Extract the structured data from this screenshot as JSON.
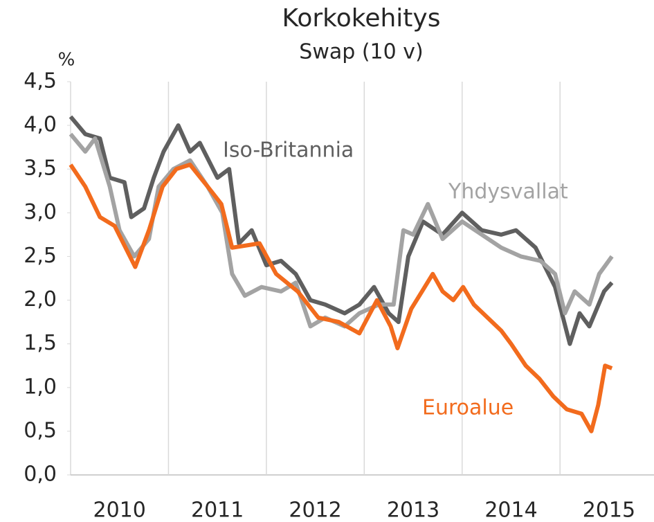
{
  "chart_data": {
    "type": "line",
    "title": "Korkokehitys",
    "subtitle": "Swap (10 v)",
    "y_label": "%",
    "xlim": [
      2010,
      2015.96
    ],
    "ylim": [
      0,
      4.5
    ],
    "xticks": [
      {
        "value": 2010.5,
        "label": "2010"
      },
      {
        "value": 2011.5,
        "label": "2011"
      },
      {
        "value": 2012.5,
        "label": "2012"
      },
      {
        "value": 2013.5,
        "label": "2013"
      },
      {
        "value": 2014.5,
        "label": "2014"
      },
      {
        "value": 2015.5,
        "label": "2015"
      }
    ],
    "yticks": [
      {
        "value": 0,
        "label": "0,0"
      },
      {
        "value": 0.5,
        "label": "0,5"
      },
      {
        "value": 1,
        "label": "1,0"
      },
      {
        "value": 1.5,
        "label": "1,5"
      },
      {
        "value": 2,
        "label": "2,0"
      },
      {
        "value": 2.5,
        "label": "2,5"
      },
      {
        "value": 3,
        "label": "3,0"
      },
      {
        "value": 3.5,
        "label": "3,5"
      },
      {
        "value": 4,
        "label": "4,0"
      },
      {
        "value": 4.5,
        "label": "4,5"
      }
    ],
    "grid": "x",
    "series": [
      {
        "name": "Iso-Britannia",
        "color": "#5f5f5f",
        "x": [
          2010.0,
          2010.15,
          2010.3,
          2010.4,
          2010.55,
          2010.62,
          2010.75,
          2010.85,
          2010.95,
          2011.1,
          2011.22,
          2011.32,
          2011.5,
          2011.62,
          2011.72,
          2011.85,
          2012.0,
          2012.15,
          2012.3,
          2012.45,
          2012.6,
          2012.8,
          2012.95,
          2013.1,
          2013.25,
          2013.35,
          2013.45,
          2013.6,
          2013.8,
          2014.0,
          2014.2,
          2014.4,
          2014.55,
          2014.75,
          2014.95,
          2015.1,
          2015.2,
          2015.3,
          2015.45,
          2015.53
        ],
        "values": [
          4.1,
          3.9,
          3.85,
          3.4,
          3.35,
          2.95,
          3.05,
          3.4,
          3.7,
          4.0,
          3.7,
          3.8,
          3.4,
          3.5,
          2.65,
          2.8,
          2.4,
          2.45,
          2.3,
          2.0,
          1.95,
          1.85,
          1.95,
          2.15,
          1.85,
          1.75,
          2.5,
          2.9,
          2.75,
          3.0,
          2.8,
          2.75,
          2.8,
          2.6,
          2.15,
          1.5,
          1.85,
          1.7,
          2.1,
          2.2
        ]
      },
      {
        "name": "Yhdysvallat",
        "color": "#a3a3a3",
        "x": [
          2010.0,
          2010.15,
          2010.25,
          2010.4,
          2010.5,
          2010.65,
          2010.8,
          2010.9,
          2011.05,
          2011.22,
          2011.4,
          2011.55,
          2011.65,
          2011.78,
          2011.95,
          2012.15,
          2012.3,
          2012.45,
          2012.6,
          2012.8,
          2012.95,
          2013.15,
          2013.3,
          2013.4,
          2013.5,
          2013.65,
          2013.8,
          2014.0,
          2014.2,
          2014.4,
          2014.6,
          2014.8,
          2014.95,
          2015.05,
          2015.15,
          2015.3,
          2015.4,
          2015.53
        ],
        "values": [
          3.9,
          3.7,
          3.85,
          3.3,
          2.8,
          2.5,
          2.7,
          3.3,
          3.5,
          3.6,
          3.3,
          3.0,
          2.3,
          2.05,
          2.15,
          2.1,
          2.2,
          1.7,
          1.8,
          1.7,
          1.85,
          1.95,
          1.95,
          2.8,
          2.75,
          3.1,
          2.7,
          2.9,
          2.75,
          2.6,
          2.5,
          2.45,
          2.3,
          1.85,
          2.1,
          1.95,
          2.3,
          2.5
        ]
      },
      {
        "name": "Euroalue",
        "color": "#f26b1d",
        "x": [
          2010.0,
          2010.15,
          2010.3,
          2010.45,
          2010.66,
          2010.8,
          2010.94,
          2011.08,
          2011.22,
          2011.4,
          2011.54,
          2011.65,
          2011.93,
          2012.1,
          2012.32,
          2012.53,
          2012.74,
          2012.95,
          2013.13,
          2013.27,
          2013.34,
          2013.48,
          2013.59,
          2013.7,
          2013.8,
          2013.91,
          2014.01,
          2014.12,
          2014.26,
          2014.4,
          2014.5,
          2014.65,
          2014.79,
          2014.93,
          2015.07,
          2015.22,
          2015.32,
          2015.39,
          2015.46,
          2015.53
        ],
        "values": [
          3.55,
          3.3,
          2.95,
          2.85,
          2.38,
          2.8,
          3.3,
          3.5,
          3.55,
          3.3,
          3.1,
          2.6,
          2.65,
          2.3,
          2.1,
          1.8,
          1.75,
          1.62,
          2.0,
          1.7,
          1.45,
          1.9,
          2.1,
          2.3,
          2.1,
          2.0,
          2.15,
          1.95,
          1.8,
          1.65,
          1.5,
          1.25,
          1.1,
          0.9,
          0.75,
          0.7,
          0.5,
          0.8,
          1.25,
          1.22
        ]
      }
    ]
  }
}
